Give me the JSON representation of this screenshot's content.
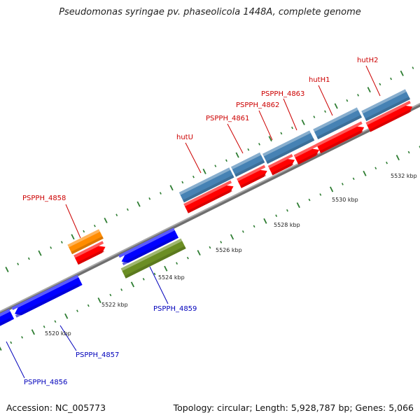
{
  "title": "Pseudomonas syringae pv. phaseolicola 1448A, complete genome",
  "footer": {
    "accession": "Accession: NC_005773",
    "summary": "Topology: circular; Length: 5,928,787 bp; Genes: 5,066"
  },
  "colors": {
    "backbone": "#8c8c8c",
    "tick": "#2e7d32",
    "label_upper": "#cc0000",
    "label_lower": "#0000bb",
    "blue_steel": "#4682b4",
    "red": "#ff0000",
    "orange": "#ff8c00",
    "blue": "#0000ff",
    "olive": "#6b8e23"
  },
  "tick_labels": [
    "5520 kbp",
    "5522 kbp",
    "5524 kbp",
    "5526 kbp",
    "5528 kbp",
    "5530 kbp",
    "5532 kbp"
  ],
  "gene_labels": [
    {
      "id": "PSPPH_4856",
      "text": "PSPPH_4856",
      "side": "lower"
    },
    {
      "id": "PSPPH_4857",
      "text": "PSPPH_4857",
      "side": "lower"
    },
    {
      "id": "PSPPH_4858",
      "text": "PSPPH_4858",
      "side": "upper"
    },
    {
      "id": "PSPPH_4859",
      "text": "PSPPH_4859",
      "side": "lower"
    },
    {
      "id": "hutU",
      "text": "hutU",
      "side": "upper"
    },
    {
      "id": "PSPPH_4861",
      "text": "PSPPH_4861",
      "side": "upper"
    },
    {
      "id": "PSPPH_4862",
      "text": "PSPPH_4862",
      "side": "upper"
    },
    {
      "id": "PSPPH_4863",
      "text": "PSPPH_4863",
      "side": "upper"
    },
    {
      "id": "hutH1",
      "text": "hutH1",
      "side": "upper"
    },
    {
      "id": "hutH2",
      "text": "hutH2",
      "side": "upper"
    }
  ]
}
